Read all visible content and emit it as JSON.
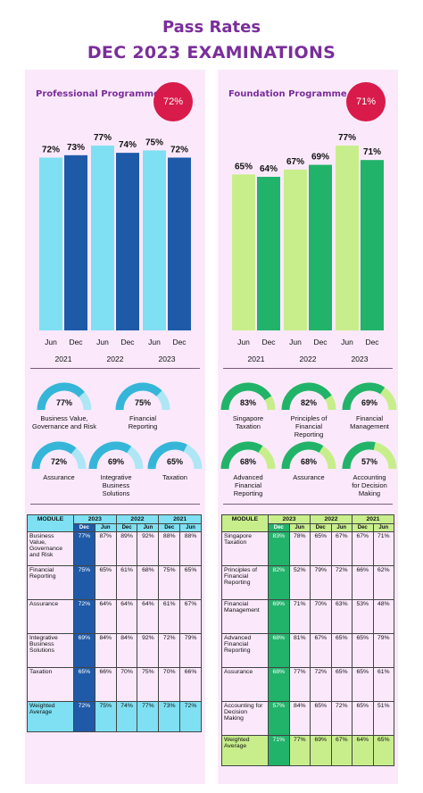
{
  "header": {
    "title": "Pass Rates",
    "subtitle": "DEC 2023 EXAMINATIONS"
  },
  "colors": {
    "purple": "#7a2e9a",
    "badge": "#d81b4a",
    "pro_jun": "#7ee0f2",
    "pro_dec": "#1f5aa8",
    "fnd_jun": "#c8ee8c",
    "fnd_dec": "#22b36a"
  },
  "professional": {
    "label": "Professional Programme",
    "badge": "72%",
    "chart_data": {
      "type": "bar",
      "categories": [
        "Jun",
        "Dec",
        "Jun",
        "Dec",
        "Jun",
        "Dec"
      ],
      "years": [
        "2021",
        "2022",
        "2023"
      ],
      "values": [
        72,
        73,
        77,
        74,
        75,
        72
      ],
      "labels": [
        "72%",
        "73%",
        "77%",
        "74%",
        "75%",
        "72%"
      ]
    },
    "gauges": [
      {
        "value": 77,
        "text": "77%",
        "label": [
          "Business Value,",
          "Governance and Risk"
        ]
      },
      {
        "value": 75,
        "text": "75%",
        "label": [
          "Financial",
          "Reporting"
        ]
      },
      {
        "value": 72,
        "text": "72%",
        "label": [
          "Assurance"
        ]
      },
      {
        "value": 69,
        "text": "69%",
        "label": [
          "Integrative",
          "Business",
          "Solutions"
        ]
      },
      {
        "value": 65,
        "text": "65%",
        "label": [
          "Taxation"
        ]
      }
    ],
    "table": {
      "header_module": "MODULE",
      "years": [
        "2023",
        "2022",
        "2021"
      ],
      "sub": [
        "Dec",
        "Jun",
        "Dec",
        "Jun",
        "Dec",
        "Jun"
      ],
      "rows": [
        {
          "name": "Business Value, Governance and Risk",
          "vals": [
            "77%",
            "87%",
            "89%",
            "92%",
            "88%",
            "88%"
          ]
        },
        {
          "name": "Financial Reporting",
          "vals": [
            "75%",
            "65%",
            "61%",
            "68%",
            "75%",
            "65%"
          ]
        },
        {
          "name": "Assurance",
          "vals": [
            "72%",
            "64%",
            "64%",
            "64%",
            "61%",
            "67%"
          ]
        },
        {
          "name": "Integrative Business Solutions",
          "vals": [
            "69%",
            "84%",
            "84%",
            "92%",
            "72%",
            "79%"
          ]
        },
        {
          "name": "Taxation",
          "vals": [
            "65%",
            "66%",
            "70%",
            "75%",
            "70%",
            "66%"
          ]
        },
        {
          "name": "Weighted Average",
          "vals": [
            "72%",
            "75%",
            "74%",
            "77%",
            "73%",
            "72%"
          ]
        }
      ]
    }
  },
  "foundation": {
    "label": "Foundation Programme",
    "badge": "71%",
    "chart_data": {
      "type": "bar",
      "categories": [
        "Jun",
        "Dec",
        "Jun",
        "Dec",
        "Jun",
        "Dec"
      ],
      "years": [
        "2021",
        "2022",
        "2023"
      ],
      "values": [
        65,
        64,
        67,
        69,
        77,
        71
      ],
      "labels": [
        "65%",
        "64%",
        "67%",
        "69%",
        "77%",
        "71%"
      ]
    },
    "gauges": [
      {
        "value": 83,
        "text": "83%",
        "label": [
          "Singapore",
          "Taxation"
        ]
      },
      {
        "value": 82,
        "text": "82%",
        "label": [
          "Principles of",
          "Financial",
          "Reporting"
        ]
      },
      {
        "value": 69,
        "text": "69%",
        "label": [
          "Financial",
          "Management"
        ]
      },
      {
        "value": 68,
        "text": "68%",
        "label": [
          "Advanced",
          "Financial",
          "Reporting"
        ]
      },
      {
        "value": 68,
        "text": "68%",
        "label": [
          "Assurance"
        ]
      },
      {
        "value": 57,
        "text": "57%",
        "label": [
          "Accounting",
          "for Decision",
          "Making"
        ]
      }
    ],
    "table": {
      "header_module": "MODULE",
      "years": [
        "2023",
        "2022",
        "2021"
      ],
      "sub": [
        "Dec",
        "Jun",
        "Dec",
        "Jun",
        "Dec",
        "Jun"
      ],
      "rows": [
        {
          "name": "Singapore Taxation",
          "vals": [
            "83%",
            "78%",
            "65%",
            "67%",
            "67%",
            "71%"
          ]
        },
        {
          "name": "Principles of Financial Reporting",
          "vals": [
            "82%",
            "52%",
            "79%",
            "72%",
            "66%",
            "62%"
          ]
        },
        {
          "name": "Financial Management",
          "vals": [
            "69%",
            "71%",
            "70%",
            "63%",
            "53%",
            "48%"
          ]
        },
        {
          "name": "Advanced Financial Reporting",
          "vals": [
            "68%",
            "81%",
            "67%",
            "65%",
            "65%",
            "79%"
          ]
        },
        {
          "name": "Assurance",
          "vals": [
            "68%",
            "77%",
            "72%",
            "65%",
            "65%",
            "61%"
          ]
        },
        {
          "name": "Accounting for Decision Making",
          "vals": [
            "57%",
            "84%",
            "65%",
            "72%",
            "65%",
            "51%"
          ]
        },
        {
          "name": "Weighted Average",
          "vals": [
            "71%",
            "77%",
            "69%",
            "67%",
            "64%",
            "65%"
          ]
        }
      ]
    }
  }
}
